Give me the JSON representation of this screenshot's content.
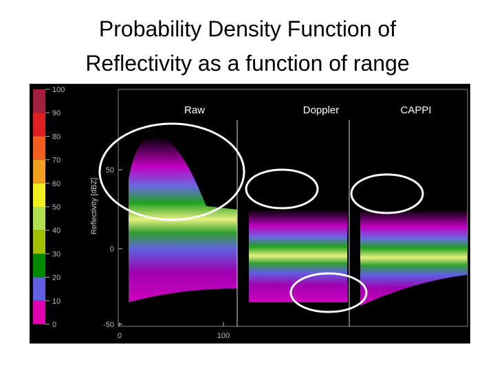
{
  "title": [
    "Probability Density Function of",
    "Reflectivity as a function of range"
  ],
  "figure": {
    "panels": [
      "Raw",
      "Doppler",
      "CAPPI"
    ],
    "y_axis_label": "Reflectivity [dBZ]",
    "y_ticks": [
      50,
      0,
      -50
    ],
    "x_ticks": [
      0,
      100
    ],
    "colorbar_ticks": [
      100,
      90,
      80,
      70,
      60,
      50,
      40,
      30,
      20,
      10,
      0
    ]
  }
}
